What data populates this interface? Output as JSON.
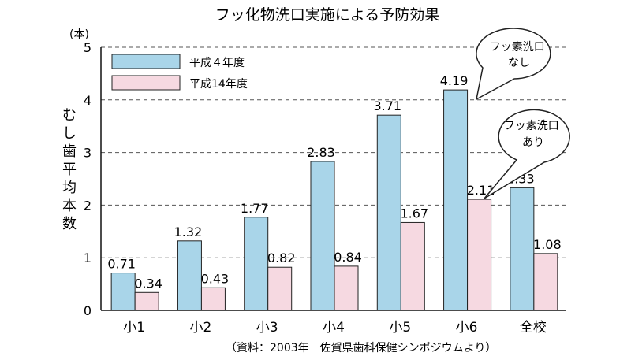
{
  "chart_data": {
    "type": "bar",
    "title": "フッ化物洗口実施による予防効果",
    "ylabel": "むし歯平均本数",
    "yunit": "(本)",
    "ylim": [
      0,
      5
    ],
    "yticks": [
      "0",
      "1",
      "2",
      "3",
      "4",
      "5"
    ],
    "categories": [
      "小1",
      "小2",
      "小3",
      "小4",
      "小5",
      "小6",
      "全校"
    ],
    "series": [
      {
        "name": "平成４年度",
        "values": [
          0.71,
          1.32,
          1.77,
          2.83,
          3.71,
          4.19,
          2.33
        ],
        "labels": [
          "0.71",
          "1.32",
          "1.77",
          "2.83",
          "3.71",
          "4.19",
          "2.33"
        ],
        "color": "#a9d5e9"
      },
      {
        "name": "平成14年度",
        "values": [
          0.34,
          0.43,
          0.82,
          0.84,
          1.67,
          2.11,
          1.08
        ],
        "labels": [
          "0.34",
          "0.43",
          "0.82",
          "0.84",
          "1.67",
          "2.11",
          "1.08"
        ],
        "color": "#f6d9e1"
      }
    ],
    "grid": true,
    "legend": "top-left",
    "annotations": [
      "フッ素洗口\nなし",
      "フッ素洗口\nあり"
    ],
    "source": "（資料：2003年　佐賀県歯科保健シンポジウムより）"
  }
}
